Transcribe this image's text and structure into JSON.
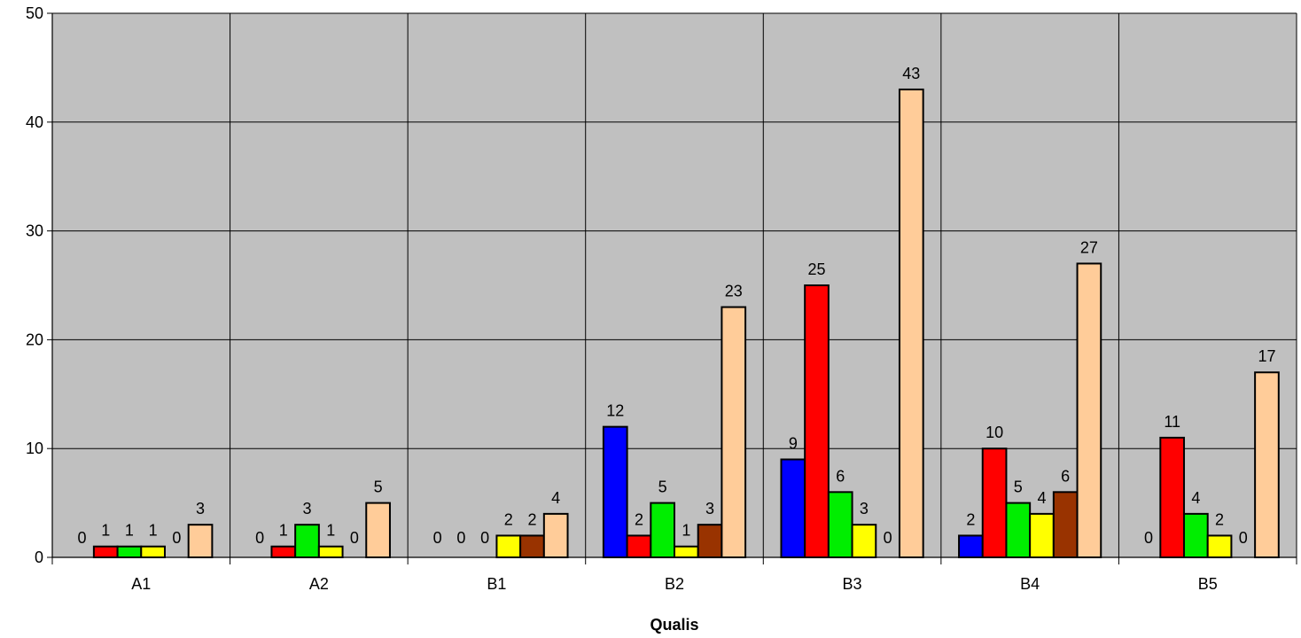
{
  "chart_data": {
    "type": "bar",
    "title": "",
    "xlabel": "Qualis",
    "ylabel": "",
    "ylim": [
      0,
      50
    ],
    "yticks": [
      0,
      10,
      20,
      30,
      40,
      50
    ],
    "grid": true,
    "categories": [
      "A1",
      "A2",
      "B1",
      "B2",
      "B3",
      "B4",
      "B5"
    ],
    "series": [
      {
        "color": "#0000ff",
        "values": [
          0,
          0,
          0,
          12,
          9,
          2,
          0
        ]
      },
      {
        "color": "#ff0000",
        "values": [
          1,
          1,
          0,
          2,
          25,
          10,
          11
        ]
      },
      {
        "color": "#00ee00",
        "values": [
          1,
          3,
          0,
          5,
          6,
          5,
          4
        ]
      },
      {
        "color": "#ffff00",
        "values": [
          1,
          1,
          2,
          1,
          3,
          4,
          2
        ]
      },
      {
        "color": "#993300",
        "values": [
          0,
          0,
          2,
          3,
          0,
          6,
          0
        ]
      },
      {
        "color": "#ffcc99",
        "values": [
          3,
          5,
          4,
          23,
          43,
          27,
          17
        ]
      }
    ],
    "plot_background": "#c0c0c0"
  }
}
